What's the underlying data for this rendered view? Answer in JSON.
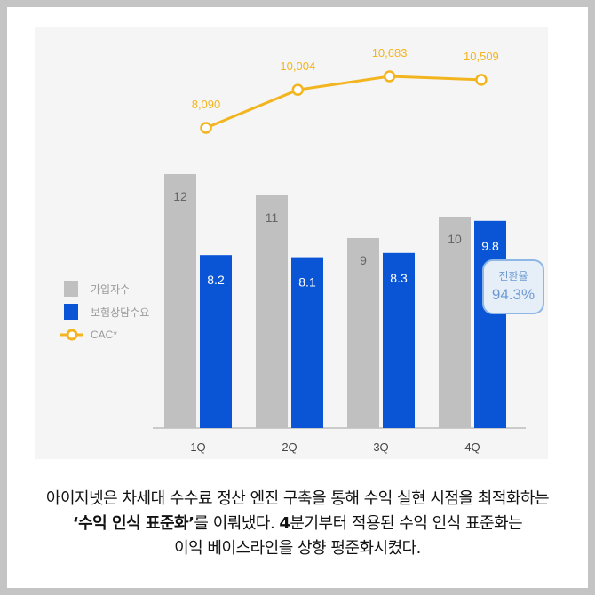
{
  "chart_data": {
    "type": "bar",
    "categories": [
      "1Q",
      "2Q",
      "3Q",
      "4Q"
    ],
    "series": [
      {
        "name": "가입자수",
        "kind": "bar",
        "color": "#c0c0c0",
        "values": [
          12,
          11,
          9,
          10
        ]
      },
      {
        "name": "보험상담수요",
        "kind": "bar",
        "color": "#0a55d6",
        "values": [
          8.2,
          8.1,
          8.3,
          9.8
        ]
      },
      {
        "name": "CAC*",
        "kind": "line",
        "color": "#f2b51f",
        "values": [
          8090,
          10004,
          10683,
          10509
        ],
        "labels": [
          "8,090",
          "10,004",
          "10,683",
          "10,509"
        ]
      }
    ],
    "legend_position": "left",
    "annotation": {
      "label": "전환율",
      "value": "94.3%"
    }
  },
  "caption": {
    "line1": "아이지넷은 차세대 수수료 정산 엔진 구축을 통해 수익 실현 시점을 최적화하는",
    "line2_a": "‘수익 인식 표준화’",
    "line2_b": "를 이뤄냈다. ",
    "line2_c": "4",
    "line2_d": "분기부터 적용된 수익 인식 표준화는",
    "line3": "이익 베이스라인을 상향 평준화시켰다."
  }
}
